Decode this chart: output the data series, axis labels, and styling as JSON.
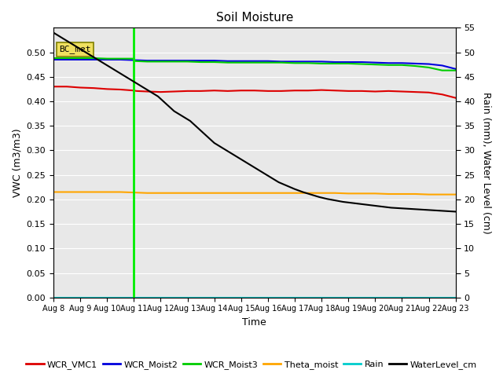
{
  "title": "Soil Moisture",
  "xlabel": "Time",
  "ylabel_left": "VWC (m3/m3)",
  "ylabel_right": "Rain (mm), Water Level (cm)",
  "ylim_left": [
    0.0,
    0.55
  ],
  "ylim_right": [
    0,
    55
  ],
  "yticks_left": [
    0.0,
    0.05,
    0.1,
    0.15,
    0.2,
    0.25,
    0.3,
    0.35,
    0.4,
    0.45,
    0.5
  ],
  "yticks_right": [
    0,
    5,
    10,
    15,
    20,
    25,
    30,
    35,
    40,
    45,
    50,
    55
  ],
  "xtick_labels": [
    "Aug 8",
    "Aug 9",
    "Aug 10",
    "Aug 11",
    "Aug 12",
    "Aug 13",
    "Aug 14",
    "Aug 15",
    "Aug 16",
    "Aug 17",
    "Aug 18",
    "Aug 19",
    "Aug 20",
    "Aug 21",
    "Aug 22",
    "Aug 23"
  ],
  "vline_x": 3,
  "vline_color": "#00EE00",
  "bc_met_label": "BC_met",
  "colors": {
    "WCR_VMC1": "#DD0000",
    "WCR_Moist2": "#0000DD",
    "WCR_Moist3": "#00CC00",
    "Theta_moist": "#FFA500",
    "Rain": "#00CCCC",
    "WaterLevel_cm": "#000000"
  },
  "background_color": "#E8E8E8",
  "grid_color": "#FFFFFF",
  "series": {
    "WCR_VMC1": {
      "x": [
        0,
        0.5,
        1,
        1.5,
        2,
        2.5,
        3,
        3.1,
        3.5,
        4,
        4.5,
        5,
        5.5,
        6,
        6.5,
        7,
        7.5,
        8,
        8.5,
        9,
        9.5,
        10,
        10.5,
        11,
        11.5,
        12,
        12.5,
        13,
        13.5,
        14,
        14.5,
        15
      ],
      "y": [
        0.43,
        0.43,
        0.428,
        0.427,
        0.425,
        0.424,
        0.422,
        0.421,
        0.42,
        0.419,
        0.42,
        0.421,
        0.421,
        0.422,
        0.421,
        0.422,
        0.422,
        0.421,
        0.421,
        0.422,
        0.422,
        0.423,
        0.422,
        0.421,
        0.421,
        0.42,
        0.421,
        0.42,
        0.419,
        0.418,
        0.414,
        0.407
      ]
    },
    "WCR_Moist2": {
      "x": [
        0,
        0.5,
        1,
        1.5,
        2,
        2.5,
        3,
        3.5,
        4,
        4.5,
        5,
        5.5,
        6,
        6.5,
        7,
        7.5,
        8,
        8.5,
        9,
        9.5,
        10,
        10.5,
        11,
        11.5,
        12,
        12.5,
        13,
        13.5,
        14,
        14.5,
        15
      ],
      "y": [
        0.485,
        0.485,
        0.485,
        0.485,
        0.485,
        0.485,
        0.484,
        0.483,
        0.483,
        0.483,
        0.483,
        0.483,
        0.483,
        0.482,
        0.482,
        0.482,
        0.482,
        0.481,
        0.481,
        0.481,
        0.481,
        0.48,
        0.48,
        0.48,
        0.479,
        0.478,
        0.478,
        0.477,
        0.476,
        0.473,
        0.466
      ]
    },
    "WCR_Moist3": {
      "x": [
        0,
        0.5,
        1,
        1.5,
        2,
        2.5,
        3,
        3.05,
        3.5,
        4,
        4.5,
        5,
        5.5,
        6,
        6.5,
        7,
        7.5,
        8,
        8.5,
        9,
        9.5,
        10,
        10.5,
        11,
        11.5,
        12,
        12.5,
        13,
        13.5,
        14,
        14.5,
        15
      ],
      "y": [
        0.488,
        0.488,
        0.488,
        0.488,
        0.487,
        0.487,
        0.487,
        0.482,
        0.481,
        0.481,
        0.481,
        0.481,
        0.48,
        0.48,
        0.479,
        0.479,
        0.479,
        0.479,
        0.479,
        0.478,
        0.478,
        0.477,
        0.477,
        0.477,
        0.476,
        0.475,
        0.474,
        0.474,
        0.472,
        0.469,
        0.463,
        0.463
      ]
    },
    "Theta_moist": {
      "x": [
        0,
        0.5,
        1,
        1.5,
        2,
        2.5,
        3,
        3.5,
        4,
        4.5,
        5,
        5.5,
        6,
        6.5,
        7,
        7.5,
        8,
        8.5,
        9,
        9.5,
        10,
        10.5,
        11,
        11.5,
        12,
        12.5,
        13,
        13.5,
        14,
        14.5,
        15
      ],
      "y": [
        0.215,
        0.215,
        0.215,
        0.215,
        0.215,
        0.215,
        0.214,
        0.213,
        0.213,
        0.213,
        0.213,
        0.213,
        0.213,
        0.213,
        0.213,
        0.213,
        0.213,
        0.213,
        0.213,
        0.213,
        0.213,
        0.213,
        0.212,
        0.212,
        0.212,
        0.211,
        0.211,
        0.211,
        0.21,
        0.21,
        0.21
      ]
    },
    "Rain": {
      "x": [
        0,
        15
      ],
      "y": [
        0,
        0
      ]
    },
    "WaterLevel_cm": {
      "x": [
        0,
        0.3,
        0.6,
        0.9,
        1.2,
        1.5,
        1.8,
        2.1,
        2.4,
        2.7,
        3.0,
        3.3,
        3.6,
        3.9,
        4.2,
        4.5,
        4.8,
        5.1,
        5.4,
        5.7,
        6.0,
        6.3,
        6.6,
        6.9,
        7.2,
        7.5,
        7.8,
        8.1,
        8.4,
        8.7,
        9.0,
        9.3,
        9.6,
        9.9,
        10.2,
        10.5,
        10.8,
        11.1,
        11.4,
        11.7,
        12.0,
        12.3,
        12.6,
        12.9,
        13.2,
        13.5,
        13.8,
        14.1,
        14.4,
        14.7,
        15.0
      ],
      "y": [
        54,
        53,
        52,
        51,
        50,
        49,
        48,
        47,
        46,
        45,
        44,
        43,
        42,
        41,
        39.5,
        38,
        37,
        36,
        34.5,
        33,
        31.5,
        30.5,
        29.5,
        28.5,
        27.5,
        26.5,
        25.5,
        24.5,
        23.5,
        22.8,
        22.1,
        21.5,
        21.0,
        20.5,
        20.1,
        19.8,
        19.5,
        19.3,
        19.1,
        18.9,
        18.7,
        18.5,
        18.3,
        18.2,
        18.1,
        18.0,
        17.9,
        17.8,
        17.7,
        17.6,
        17.5
      ]
    }
  }
}
